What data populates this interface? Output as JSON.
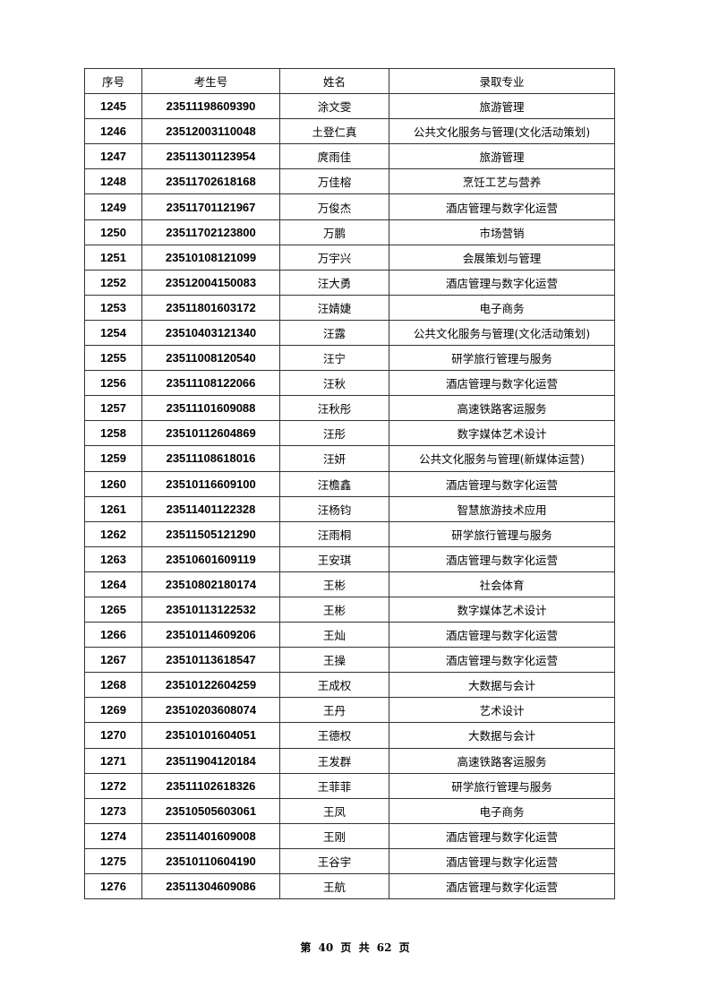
{
  "table": {
    "headers": [
      "序号",
      "考生号",
      "姓名",
      "录取专业"
    ],
    "rows": [
      [
        "1245",
        "23511198609390",
        "涂文雯",
        "旅游管理"
      ],
      [
        "1246",
        "23512003110048",
        "土登仁真",
        "公共文化服务与管理(文化活动策划)"
      ],
      [
        "1247",
        "23511301123954",
        "庹雨佳",
        "旅游管理"
      ],
      [
        "1248",
        "23511702618168",
        "万佳榕",
        "烹饪工艺与营养"
      ],
      [
        "1249",
        "23511701121967",
        "万俊杰",
        "酒店管理与数字化运营"
      ],
      [
        "1250",
        "23511702123800",
        "万鹏",
        "市场营销"
      ],
      [
        "1251",
        "23510108121099",
        "万宇兴",
        "会展策划与管理"
      ],
      [
        "1252",
        "23512004150083",
        "汪大勇",
        "酒店管理与数字化运营"
      ],
      [
        "1253",
        "23511801603172",
        "汪婧婕",
        "电子商务"
      ],
      [
        "1254",
        "23510403121340",
        "汪露",
        "公共文化服务与管理(文化活动策划)"
      ],
      [
        "1255",
        "23511008120540",
        "汪宁",
        "研学旅行管理与服务"
      ],
      [
        "1256",
        "23511108122066",
        "汪秋",
        "酒店管理与数字化运营"
      ],
      [
        "1257",
        "23511101609088",
        "汪秋彤",
        "高速铁路客运服务"
      ],
      [
        "1258",
        "23510112604869",
        "汪彤",
        "数字媒体艺术设计"
      ],
      [
        "1259",
        "23511108618016",
        "汪妍",
        "公共文化服务与管理(新媒体运营)"
      ],
      [
        "1260",
        "23510116609100",
        "汪檐鑫",
        "酒店管理与数字化运营"
      ],
      [
        "1261",
        "23511401122328",
        "汪杨钧",
        "智慧旅游技术应用"
      ],
      [
        "1262",
        "23511505121290",
        "汪雨桐",
        "研学旅行管理与服务"
      ],
      [
        "1263",
        "23510601609119",
        "王安琪",
        "酒店管理与数字化运营"
      ],
      [
        "1264",
        "23510802180174",
        "王彬",
        "社会体育"
      ],
      [
        "1265",
        "23510113122532",
        "王彬",
        "数字媒体艺术设计"
      ],
      [
        "1266",
        "23510114609206",
        "王灿",
        "酒店管理与数字化运营"
      ],
      [
        "1267",
        "23510113618547",
        "王操",
        "酒店管理与数字化运营"
      ],
      [
        "1268",
        "23510122604259",
        "王成权",
        "大数据与会计"
      ],
      [
        "1269",
        "23510203608074",
        "王丹",
        "艺术设计"
      ],
      [
        "1270",
        "23510101604051",
        "王德权",
        "大数据与会计"
      ],
      [
        "1271",
        "23511904120184",
        "王发群",
        "高速铁路客运服务"
      ],
      [
        "1272",
        "23511102618326",
        "王菲菲",
        "研学旅行管理与服务"
      ],
      [
        "1273",
        "23510505603061",
        "王凤",
        "电子商务"
      ],
      [
        "1274",
        "23511401609008",
        "王刚",
        "酒店管理与数字化运营"
      ],
      [
        "1275",
        "23510110604190",
        "王谷宇",
        "酒店管理与数字化运营"
      ],
      [
        "1276",
        "23511304609086",
        "王航",
        "酒店管理与数字化运营"
      ]
    ]
  },
  "footer": "第 40 页 共 62 页"
}
